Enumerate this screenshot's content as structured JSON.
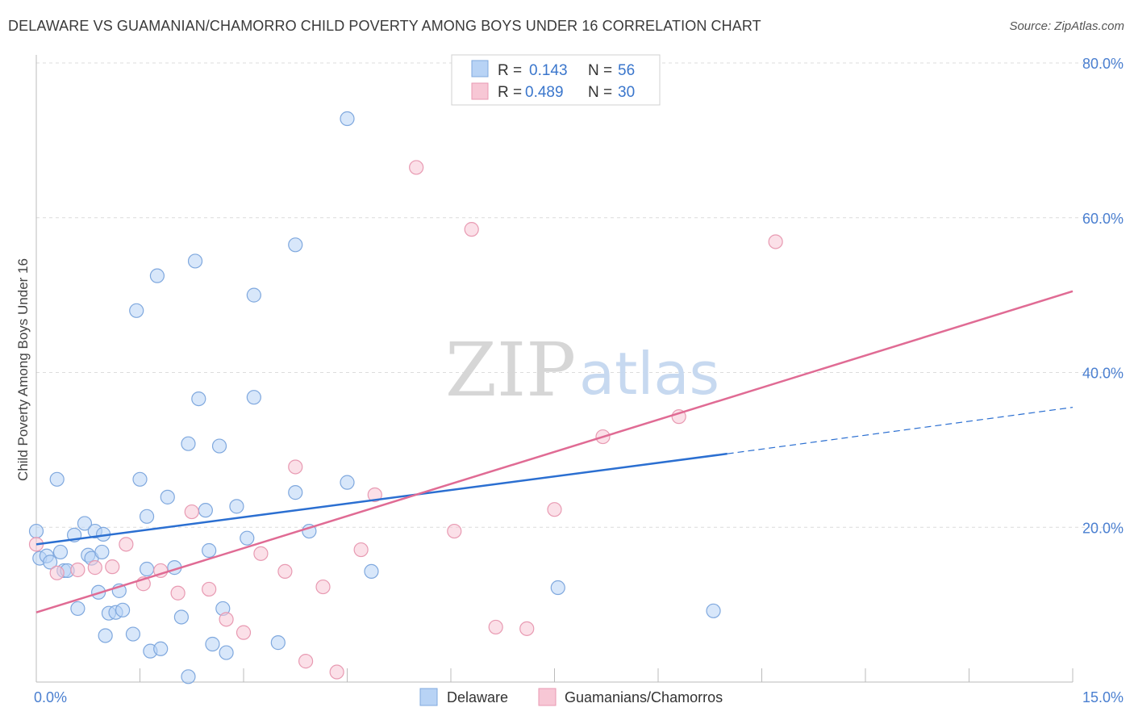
{
  "title": "DELAWARE VS GUAMANIAN/CHAMORRO CHILD POVERTY AMONG BOYS UNDER 16 CORRELATION CHART",
  "source": "Source: ZipAtlas.com",
  "watermark": {
    "zip": "ZIP",
    "atlas": "atlas"
  },
  "colors": {
    "delaware_fill": "#b8d3f5",
    "delaware_stroke": "#7fa8de",
    "delaware_line": "#2b6fd1",
    "guam_fill": "#f7c7d5",
    "guam_stroke": "#e89ab2",
    "guam_line": "#e06b94",
    "grid": "#dcdcdc",
    "tick_label": "#4a7fd0"
  },
  "legend": {
    "rows": [
      {
        "r_label": "R =",
        "r_value": "0.143",
        "n_label": "N =",
        "n_value": "56"
      },
      {
        "r_label": "R =",
        "r_value": "0.489",
        "n_label": "N =",
        "n_value": "30"
      }
    ]
  },
  "chart_data": {
    "type": "scatter",
    "ylabel": "Child Poverty Among Boys Under 16",
    "xlim": [
      0,
      15
    ],
    "ylim": [
      0,
      80
    ],
    "x_tick_labels": [
      "0.0%",
      "15.0%"
    ],
    "y_ticks": [
      20,
      40,
      60,
      80
    ],
    "y_tick_labels": [
      "20.0%",
      "40.0%",
      "60.0%",
      "80.0%"
    ],
    "grid": true,
    "legend_position": "top-center",
    "series": [
      {
        "name": "Delaware",
        "points": [
          [
            0.0,
            19.5
          ],
          [
            0.05,
            16.0
          ],
          [
            0.15,
            16.3
          ],
          [
            0.2,
            15.5
          ],
          [
            0.3,
            26.2
          ],
          [
            0.35,
            16.8
          ],
          [
            0.4,
            14.4
          ],
          [
            0.45,
            14.4
          ],
          [
            0.55,
            19.0
          ],
          [
            0.6,
            9.5
          ],
          [
            0.7,
            20.5
          ],
          [
            0.75,
            16.4
          ],
          [
            0.8,
            16.0
          ],
          [
            0.85,
            19.5
          ],
          [
            0.9,
            11.6
          ],
          [
            0.95,
            16.8
          ],
          [
            0.97,
            19.1
          ],
          [
            1.0,
            6.0
          ],
          [
            1.05,
            8.9
          ],
          [
            1.15,
            9.0
          ],
          [
            1.2,
            11.8
          ],
          [
            1.25,
            9.3
          ],
          [
            1.4,
            6.2
          ],
          [
            1.45,
            48.0
          ],
          [
            1.5,
            26.2
          ],
          [
            1.6,
            14.6
          ],
          [
            1.6,
            21.4
          ],
          [
            1.65,
            4.0
          ],
          [
            1.75,
            52.5
          ],
          [
            1.8,
            4.3
          ],
          [
            1.9,
            23.9
          ],
          [
            2.0,
            14.8
          ],
          [
            2.1,
            8.4
          ],
          [
            2.2,
            30.8
          ],
          [
            2.2,
            0.7
          ],
          [
            2.3,
            54.4
          ],
          [
            2.35,
            36.6
          ],
          [
            2.45,
            22.2
          ],
          [
            2.5,
            17.0
          ],
          [
            2.55,
            4.9
          ],
          [
            2.65,
            30.5
          ],
          [
            2.7,
            9.5
          ],
          [
            2.75,
            3.8
          ],
          [
            2.9,
            22.7
          ],
          [
            3.05,
            18.6
          ],
          [
            3.15,
            50.0
          ],
          [
            3.15,
            36.8
          ],
          [
            3.5,
            5.1
          ],
          [
            3.75,
            24.5
          ],
          [
            3.75,
            56.5
          ],
          [
            3.95,
            19.5
          ],
          [
            4.5,
            72.8
          ],
          [
            4.5,
            25.8
          ],
          [
            4.85,
            14.3
          ],
          [
            7.55,
            12.2
          ],
          [
            9.8,
            9.2
          ]
        ],
        "trend": {
          "x0": 0.0,
          "y0": 17.8,
          "x1": 10.0,
          "y1": 29.5,
          "dashed_to_x": 15.0,
          "dashed_to_y": 35.5
        }
      },
      {
        "name": "Guamanians/Chamorros",
        "points": [
          [
            0.0,
            17.8
          ],
          [
            0.3,
            14.1
          ],
          [
            0.6,
            14.5
          ],
          [
            0.85,
            14.8
          ],
          [
            1.1,
            14.9
          ],
          [
            1.3,
            17.8
          ],
          [
            1.55,
            12.7
          ],
          [
            1.8,
            14.4
          ],
          [
            2.05,
            11.5
          ],
          [
            2.25,
            22.0
          ],
          [
            2.5,
            12.0
          ],
          [
            2.75,
            8.1
          ],
          [
            3.0,
            6.4
          ],
          [
            3.25,
            16.6
          ],
          [
            3.6,
            14.3
          ],
          [
            3.75,
            27.8
          ],
          [
            3.9,
            2.7
          ],
          [
            4.15,
            12.3
          ],
          [
            4.35,
            1.3
          ],
          [
            4.7,
            17.1
          ],
          [
            4.9,
            24.2
          ],
          [
            5.5,
            66.5
          ],
          [
            6.05,
            19.5
          ],
          [
            6.3,
            58.5
          ],
          [
            6.65,
            7.1
          ],
          [
            7.1,
            6.9
          ],
          [
            7.5,
            22.3
          ],
          [
            8.2,
            31.7
          ],
          [
            9.3,
            34.3
          ],
          [
            10.7,
            56.9
          ]
        ],
        "trend": {
          "x0": 0.0,
          "y0": 9.0,
          "x1": 15.0,
          "y1": 50.5
        }
      }
    ]
  }
}
